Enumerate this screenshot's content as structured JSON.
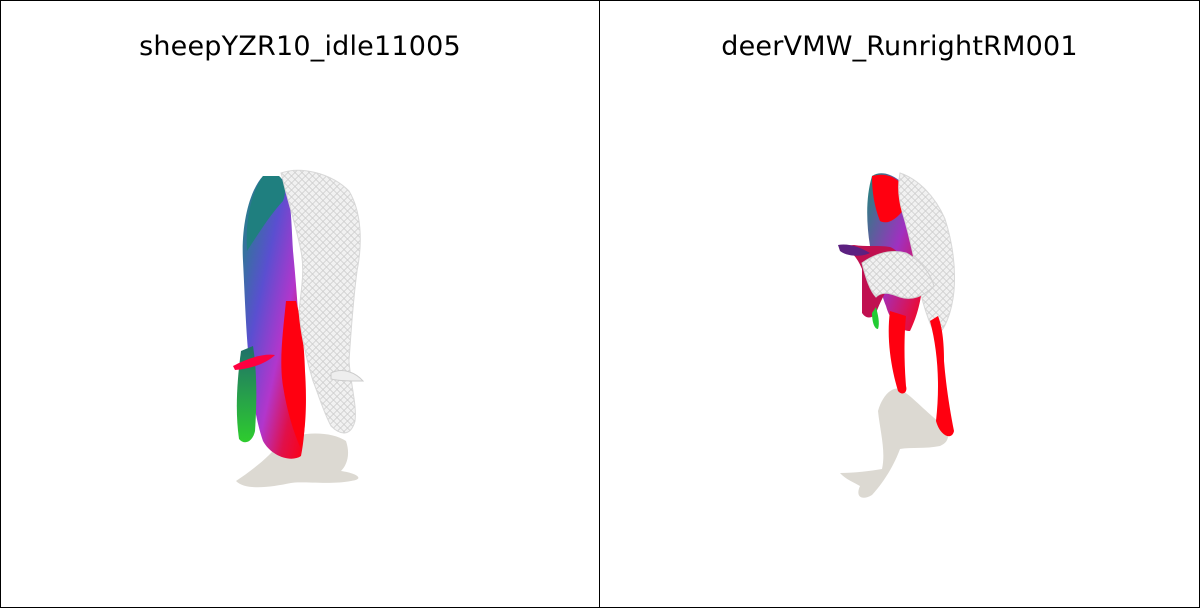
{
  "panels": [
    {
      "title": "sheepYZR10_idle11005",
      "model_icon": "sheep-mesh-icon"
    },
    {
      "title": "deerVMW_RunrightRM001",
      "model_icon": "deer-mesh-icon"
    }
  ],
  "colors": {
    "background": "#ffffff",
    "border": "#000000",
    "shadow": "#dcd9d2",
    "mesh_white": "#eeeeee",
    "red": "#ff0010",
    "magenta": "#b030d0",
    "teal": "#1f7f7f",
    "green": "#22cc33"
  }
}
